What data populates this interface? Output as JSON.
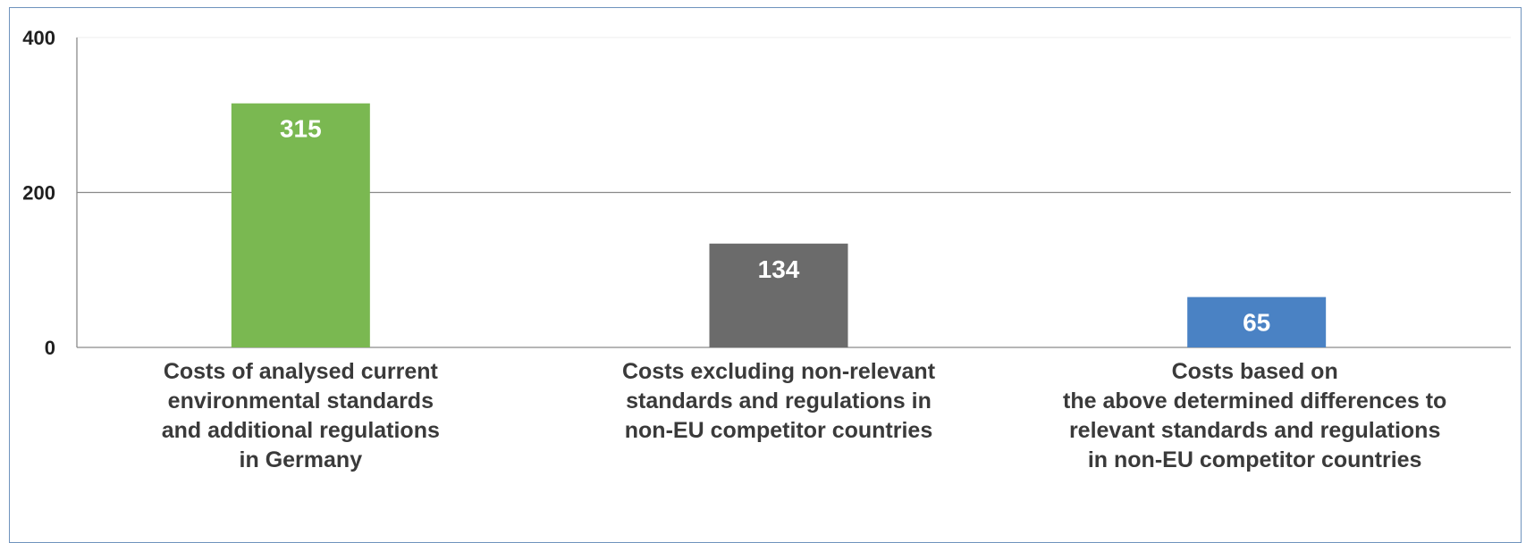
{
  "chart_data": {
    "type": "bar",
    "categories": [
      [
        "Costs of analysed current",
        "environmental standards",
        "and additional regulations",
        "in Germany"
      ],
      [
        "Costs excluding non-relevant",
        "standards and regulations in",
        "non-EU competitor countries"
      ],
      [
        "Costs based on",
        "the above determined differences to",
        "relevant standards and regulations",
        "in non-EU competitor countries"
      ]
    ],
    "values": [
      315,
      134,
      65
    ],
    "data_labels": [
      "315",
      "134",
      "65"
    ],
    "colors": [
      "#7ab851",
      "#6b6b6b",
      "#4a82c4"
    ],
    "ylim": [
      0,
      400
    ],
    "yticks": [
      0,
      200,
      400
    ],
    "ytick_labels": [
      "0",
      "200",
      "400"
    ],
    "title": "",
    "xlabel": "",
    "ylabel": "",
    "grid": true,
    "legend": "none"
  }
}
